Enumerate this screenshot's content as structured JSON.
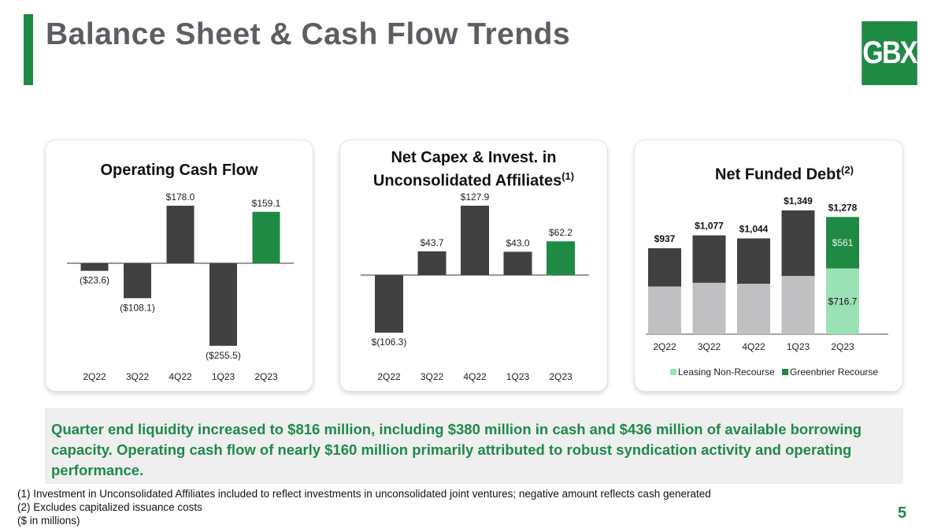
{
  "header": {
    "title": "Balance Sheet & Cash Flow Trends",
    "logo_text": "GBX"
  },
  "colors": {
    "brand_green": "#1f8a44",
    "dark_bar": "#404040",
    "light_grey": "#c0c0c3",
    "light_green": "#9ae2b6"
  },
  "chart_data": [
    {
      "type": "bar",
      "title": "Operating Cash Flow",
      "categories": [
        "2Q22",
        "3Q22",
        "4Q22",
        "1Q23",
        "2Q23"
      ],
      "values": [
        -23.6,
        -108.1,
        178.0,
        -255.5,
        159.1
      ],
      "labels": [
        "($23.6)",
        "($108.1)",
        "$178.0",
        "($255.5)",
        "$159.1"
      ],
      "highlight_last": true
    },
    {
      "type": "bar",
      "title": "Net Capex & Invest. in Unconsolidated Affiliates",
      "title_footnote": "(1)",
      "categories": [
        "2Q22",
        "3Q22",
        "4Q22",
        "1Q23",
        "2Q23"
      ],
      "values": [
        -106.3,
        43.7,
        127.9,
        43.0,
        62.2
      ],
      "labels": [
        "$(106.3)",
        "$43.7",
        "$127.9",
        "$43.0",
        "$62.2"
      ],
      "highlight_last": true
    },
    {
      "type": "stacked_bar",
      "title": "Net Funded Debt",
      "title_footnote": "(2)",
      "categories": [
        "2Q22",
        "3Q22",
        "4Q22",
        "1Q23",
        "2Q23"
      ],
      "totals": [
        937,
        1077,
        1044,
        1349,
        1278
      ],
      "total_labels": [
        "$937",
        "$1,077",
        "$1,044",
        "$1,349",
        "$1,278"
      ],
      "series": [
        {
          "name": "Leasing Non-Recourse",
          "values": [
            520,
            560,
            550,
            635,
            716.7
          ],
          "labels": [
            "",
            "",
            "",
            "",
            "$716.7"
          ]
        },
        {
          "name": "Greenbrier Recourse",
          "values": [
            417,
            517,
            494,
            714,
            561
          ],
          "labels": [
            "",
            "",
            "",
            "",
            "$561"
          ]
        }
      ],
      "legend": "bottom"
    }
  ],
  "summary": "Quarter end liquidity increased to $816 million, including $380 million in cash and $436 million of available borrowing capacity.  Operating cash flow of nearly $160 million primarily attributed to robust syndication activity and operating performance.",
  "footnotes": [
    "(1) Investment in Unconsolidated Affiliates included to reflect investments in unconsolidated joint ventures; negative amount reflects cash generated",
    "(2) Excludes capitalized issuance costs",
    "($ in millions)"
  ],
  "page_number": "5"
}
